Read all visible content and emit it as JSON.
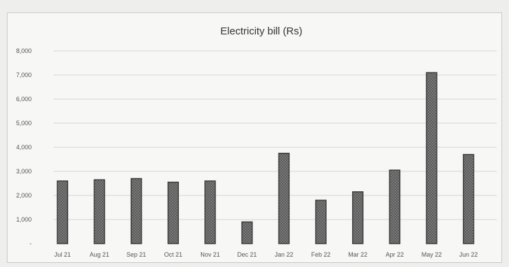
{
  "chart_data": {
    "type": "bar",
    "title": "Electricity bill (Rs)",
    "xlabel": "",
    "ylabel": "",
    "categories": [
      "Jul 21",
      "Aug 21",
      "Sep 21",
      "Oct 21",
      "Nov 21",
      "Dec 21",
      "Jan 22",
      "Feb 22",
      "Mar 22",
      "Apr 22",
      "May 22",
      "Jun 22"
    ],
    "values": [
      2600,
      2650,
      2700,
      2550,
      2600,
      900,
      3750,
      1800,
      2150,
      3050,
      7100,
      3700
    ],
    "ylim": [
      0,
      8000
    ],
    "yticks": [
      0,
      1000,
      2000,
      3000,
      4000,
      5000,
      6000,
      7000,
      8000
    ],
    "ytick_labels": [
      "-",
      "1,000",
      "2,000",
      "3,000",
      "4,000",
      "5,000",
      "6,000",
      "7,000",
      "8,000"
    ],
    "grid": true,
    "legend": "none",
    "bar_color": "#6b6b6b"
  }
}
